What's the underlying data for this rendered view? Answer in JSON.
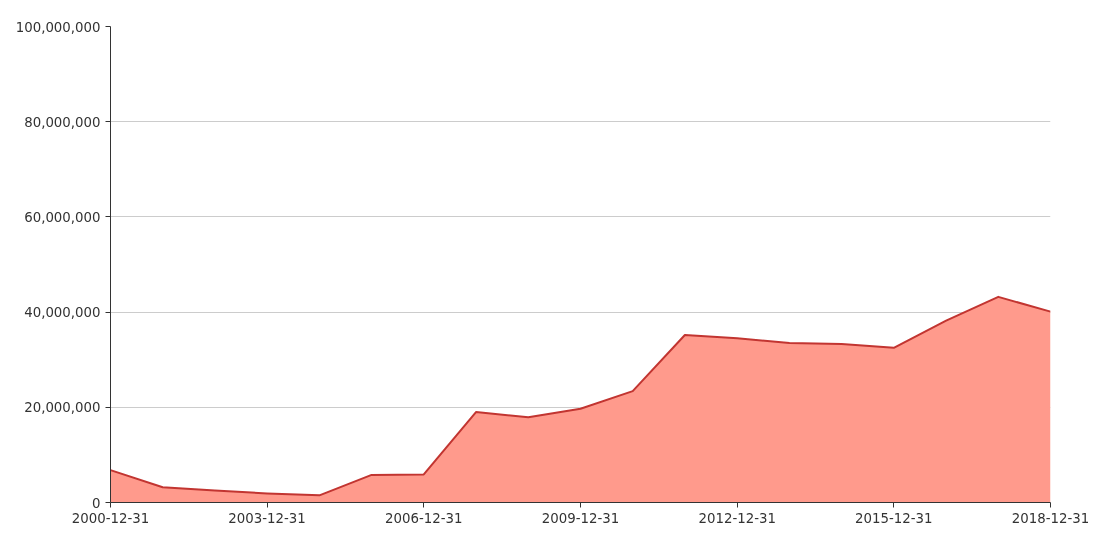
{
  "chart_data": {
    "type": "area",
    "x": [
      "2000-12-31",
      "2001-12-31",
      "2002-12-31",
      "2003-12-31",
      "2004-12-31",
      "2005-12-31",
      "2006-12-31",
      "2007-12-31",
      "2008-12-31",
      "2009-12-31",
      "2010-12-31",
      "2011-12-31",
      "2012-12-31",
      "2013-12-31",
      "2014-12-31",
      "2015-12-31",
      "2016-12-31",
      "2017-12-31",
      "2018-12-31"
    ],
    "series": [
      {
        "color": "#ff9a8c",
        "values": [
          6800000,
          3200000,
          2500000,
          1900000,
          1500000,
          5800000,
          5900000,
          19000000,
          17900000,
          19700000,
          23400000,
          35200000,
          34500000,
          33500000,
          33300000,
          32500000,
          38200000,
          43200000,
          40100000
        ]
      }
    ],
    "xlim": [
      "2000-12-31",
      "2018-12-31"
    ],
    "xticks": [
      "2000-12-31",
      "2003-12-31",
      "2006-12-31",
      "2009-12-31",
      "2012-12-31",
      "2015-12-31",
      "2018-12-31"
    ],
    "ylim": [
      0,
      100000000
    ],
    "yticks": [
      0,
      {
        "value": 20000000,
        "label": "20,000,000"
      },
      {
        "value": 40000000,
        "label": "40,000,000"
      },
      {
        "value": 60000000,
        "label": "60,000,000"
      },
      {
        "value": 80000000,
        "label": "80,000,000"
      },
      {
        "value": 100000000,
        "label": "100,000,000"
      }
    ],
    "grid": "y"
  }
}
